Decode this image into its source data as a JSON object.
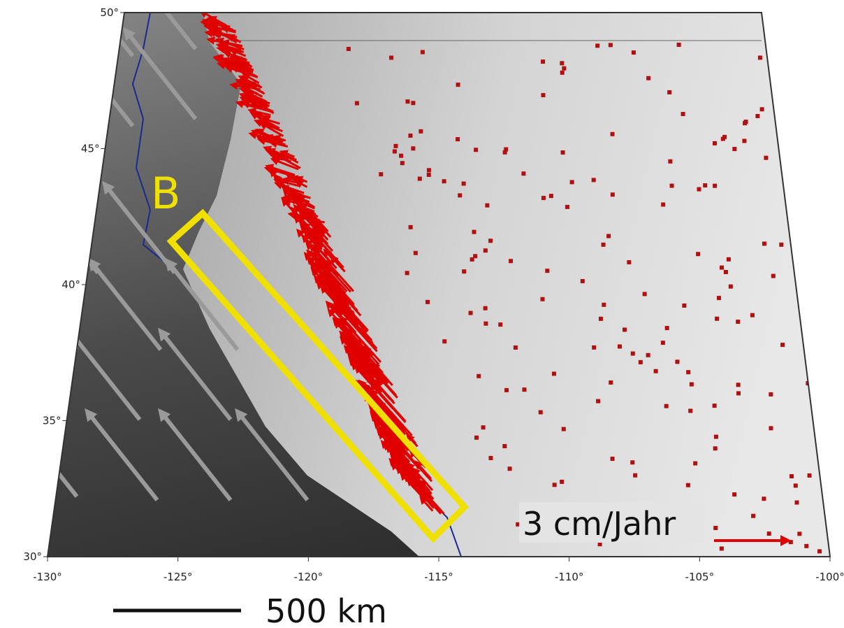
{
  "map": {
    "lat_ticks": [
      {
        "value": 30,
        "label": "30°"
      },
      {
        "value": 35,
        "label": "35°"
      },
      {
        "value": 40,
        "label": "40°"
      },
      {
        "value": 45,
        "label": "45°"
      },
      {
        "value": 50,
        "label": "50°"
      }
    ],
    "lon_ticks": [
      {
        "value": -130,
        "label": "-130°"
      },
      {
        "value": -125,
        "label": "-125°"
      },
      {
        "value": -120,
        "label": "-120°"
      },
      {
        "value": -115,
        "label": "-115°"
      },
      {
        "value": -110,
        "label": "-110°"
      },
      {
        "value": -105,
        "label": "-105°"
      },
      {
        "value": -100,
        "label": "-100°"
      }
    ],
    "profile_label": "B",
    "legend_label": "3 cm/Jahr",
    "scale_label": "500 km"
  }
}
